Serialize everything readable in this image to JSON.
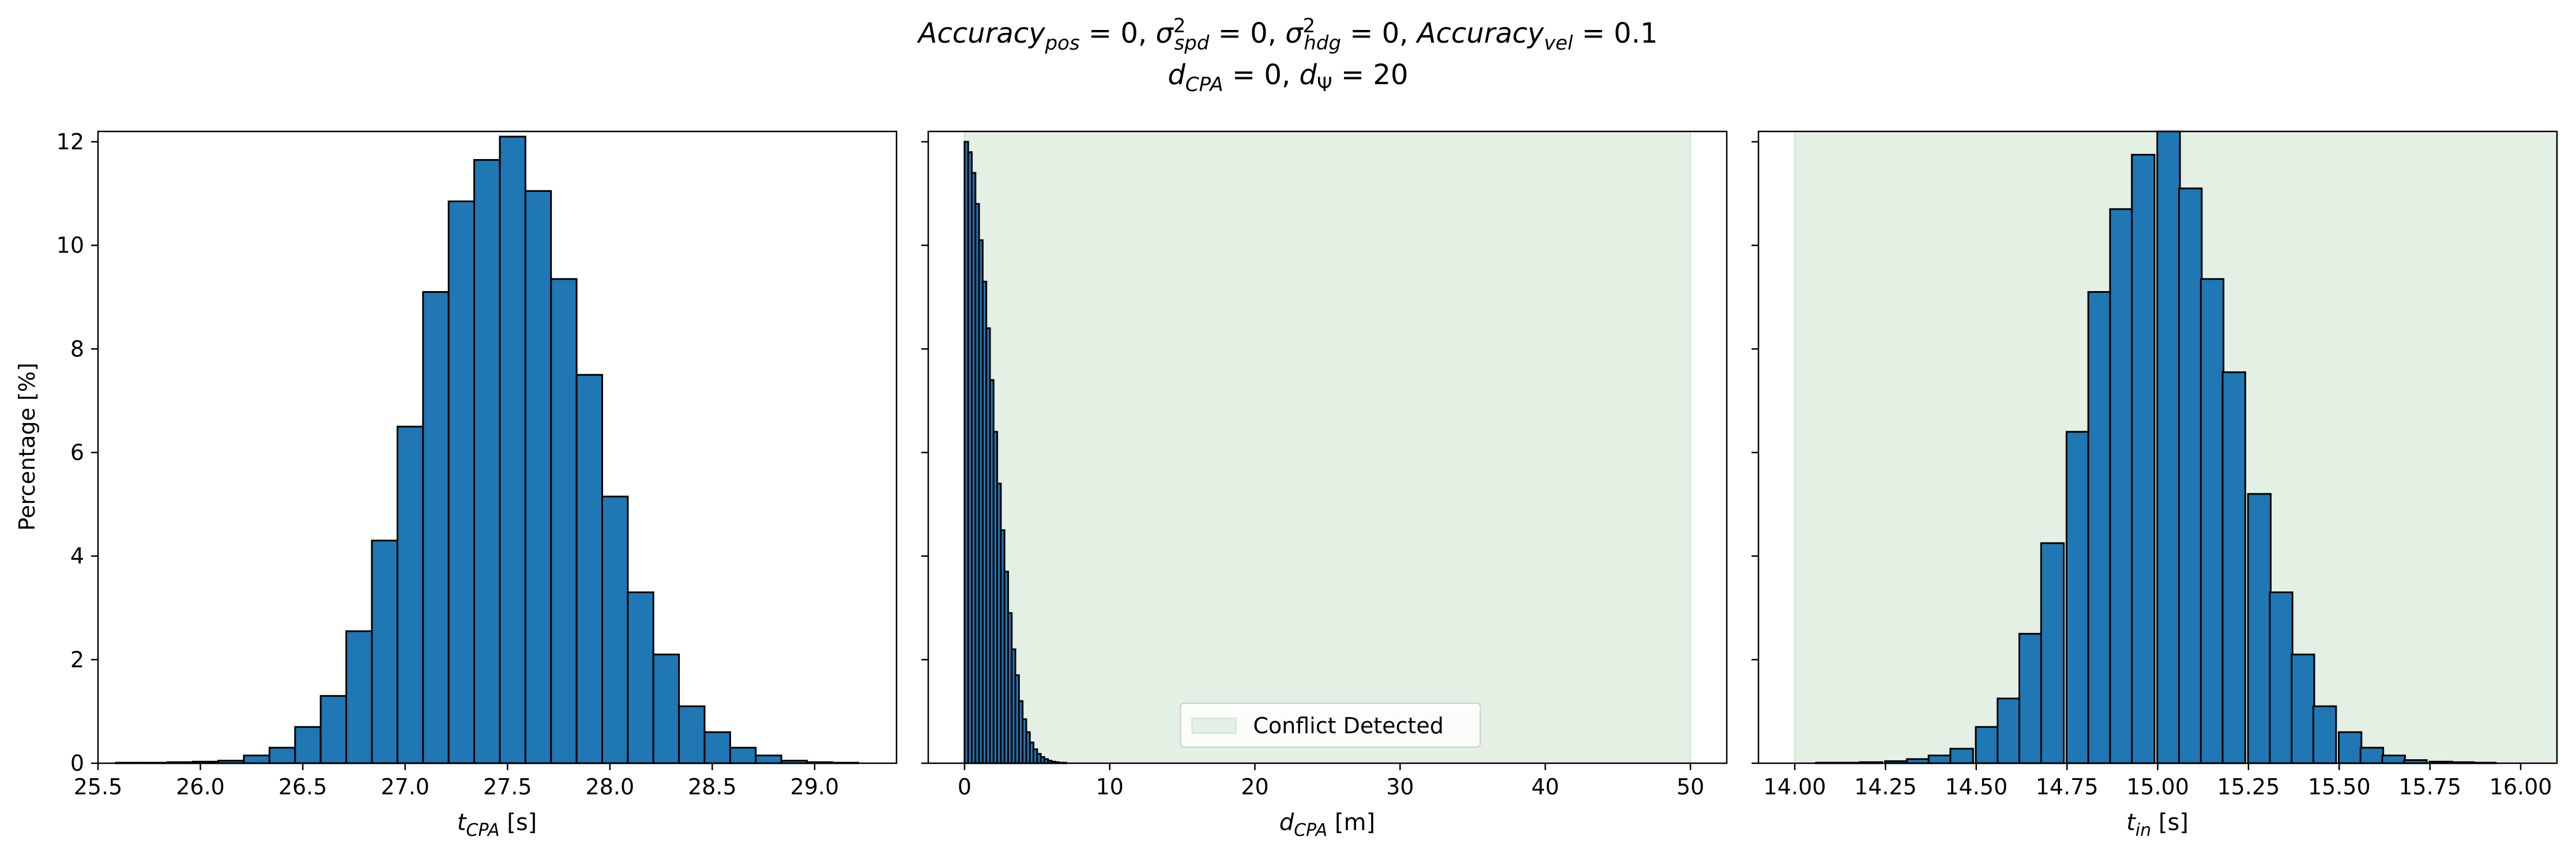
{
  "figure": {
    "title_line1": "Accuracy_pos = 0, σ²_spd = 0, σ²_hdg = 0, Accuracy_vel = 0.1",
    "title_line2": "d_CPA = 0, d_Ψ = 20"
  },
  "chart_data": [
    {
      "type": "bar",
      "panel": "t_cpa",
      "xlabel": "t_CPA [s]",
      "ylabel": "Percentage [%]",
      "xlim": [
        25.5,
        29.4
      ],
      "ylim": [
        0,
        12.2
      ],
      "xticks": [
        "25.5",
        "26.0",
        "26.5",
        "27.0",
        "27.5",
        "28.0",
        "28.5",
        "29.0"
      ],
      "yticks": [
        "0",
        "2",
        "4",
        "6",
        "8",
        "10",
        "12"
      ],
      "bar_width": 0.125,
      "bar_color": "#1f77b4",
      "x": [
        25.65,
        25.775,
        25.9,
        26.025,
        26.15,
        26.275,
        26.4,
        26.525,
        26.65,
        26.775,
        26.9,
        27.025,
        27.15,
        27.275,
        27.4,
        27.525,
        27.65,
        27.775,
        27.9,
        28.025,
        28.15,
        28.275,
        28.4,
        28.525,
        28.65,
        28.775,
        28.9,
        29.025,
        29.15
      ],
      "values": [
        0.01,
        0.01,
        0.02,
        0.03,
        0.05,
        0.15,
        0.3,
        0.7,
        1.3,
        2.55,
        4.3,
        6.5,
        9.1,
        10.85,
        11.65,
        12.1,
        11.05,
        9.35,
        7.5,
        5.15,
        3.3,
        2.1,
        1.1,
        0.6,
        0.3,
        0.15,
        0.05,
        0.02,
        0.01
      ]
    },
    {
      "type": "bar",
      "panel": "d_cpa",
      "xlabel": "d_CPA [m]",
      "xlim": [
        -2.5,
        52.5
      ],
      "ylim": [
        0,
        12.2
      ],
      "xticks": [
        "0",
        "10",
        "20",
        "30",
        "40",
        "50"
      ],
      "bar_width": 0.25,
      "bar_color": "#1f77b4",
      "shaded_region": [
        0,
        50
      ],
      "shaded_color": "#e3f0e3",
      "legend": "Conflict Detected",
      "legend_position": "lower center",
      "x": [
        0.125,
        0.375,
        0.625,
        0.875,
        1.125,
        1.375,
        1.625,
        1.875,
        2.125,
        2.375,
        2.625,
        2.875,
        3.125,
        3.375,
        3.625,
        3.875,
        4.125,
        4.375,
        4.625,
        4.875,
        5.125,
        5.375,
        5.625,
        5.875,
        6.125,
        6.375,
        6.625,
        6.875
      ],
      "values": [
        12.0,
        11.8,
        11.4,
        10.8,
        10.1,
        9.3,
        8.4,
        7.4,
        6.4,
        5.4,
        4.5,
        3.7,
        2.9,
        2.2,
        1.7,
        1.2,
        0.85,
        0.6,
        0.4,
        0.27,
        0.18,
        0.12,
        0.08,
        0.05,
        0.03,
        0.02,
        0.01,
        0.01
      ]
    },
    {
      "type": "bar",
      "panel": "t_in",
      "xlabel": "t_in [s]",
      "xlim": [
        13.9,
        16.1
      ],
      "ylim": [
        0,
        12.2
      ],
      "xticks": [
        "14.00",
        "14.25",
        "14.50",
        "14.75",
        "15.00",
        "15.25",
        "15.50",
        "15.75",
        "16.00"
      ],
      "bar_width": 0.0625,
      "bar_color": "#1f77b4",
      "shaded_region": [
        14.0,
        16.1
      ],
      "shaded_color": "#e3f0e3",
      "x": [
        14.09,
        14.15,
        14.21,
        14.28,
        14.34,
        14.4,
        14.46,
        14.53,
        14.59,
        14.65,
        14.71,
        14.78,
        14.84,
        14.9,
        14.96,
        15.03,
        15.09,
        15.15,
        15.21,
        15.28,
        15.34,
        15.4,
        15.46,
        15.53,
        15.59,
        15.65,
        15.71,
        15.78,
        15.84,
        15.9
      ],
      "values": [
        0.01,
        0.01,
        0.02,
        0.04,
        0.08,
        0.15,
        0.28,
        0.7,
        1.25,
        2.5,
        4.25,
        6.4,
        9.1,
        10.7,
        11.75,
        12.2,
        11.1,
        9.35,
        7.55,
        5.2,
        3.3,
        2.1,
        1.1,
        0.6,
        0.3,
        0.15,
        0.06,
        0.03,
        0.02,
        0.01
      ]
    }
  ]
}
